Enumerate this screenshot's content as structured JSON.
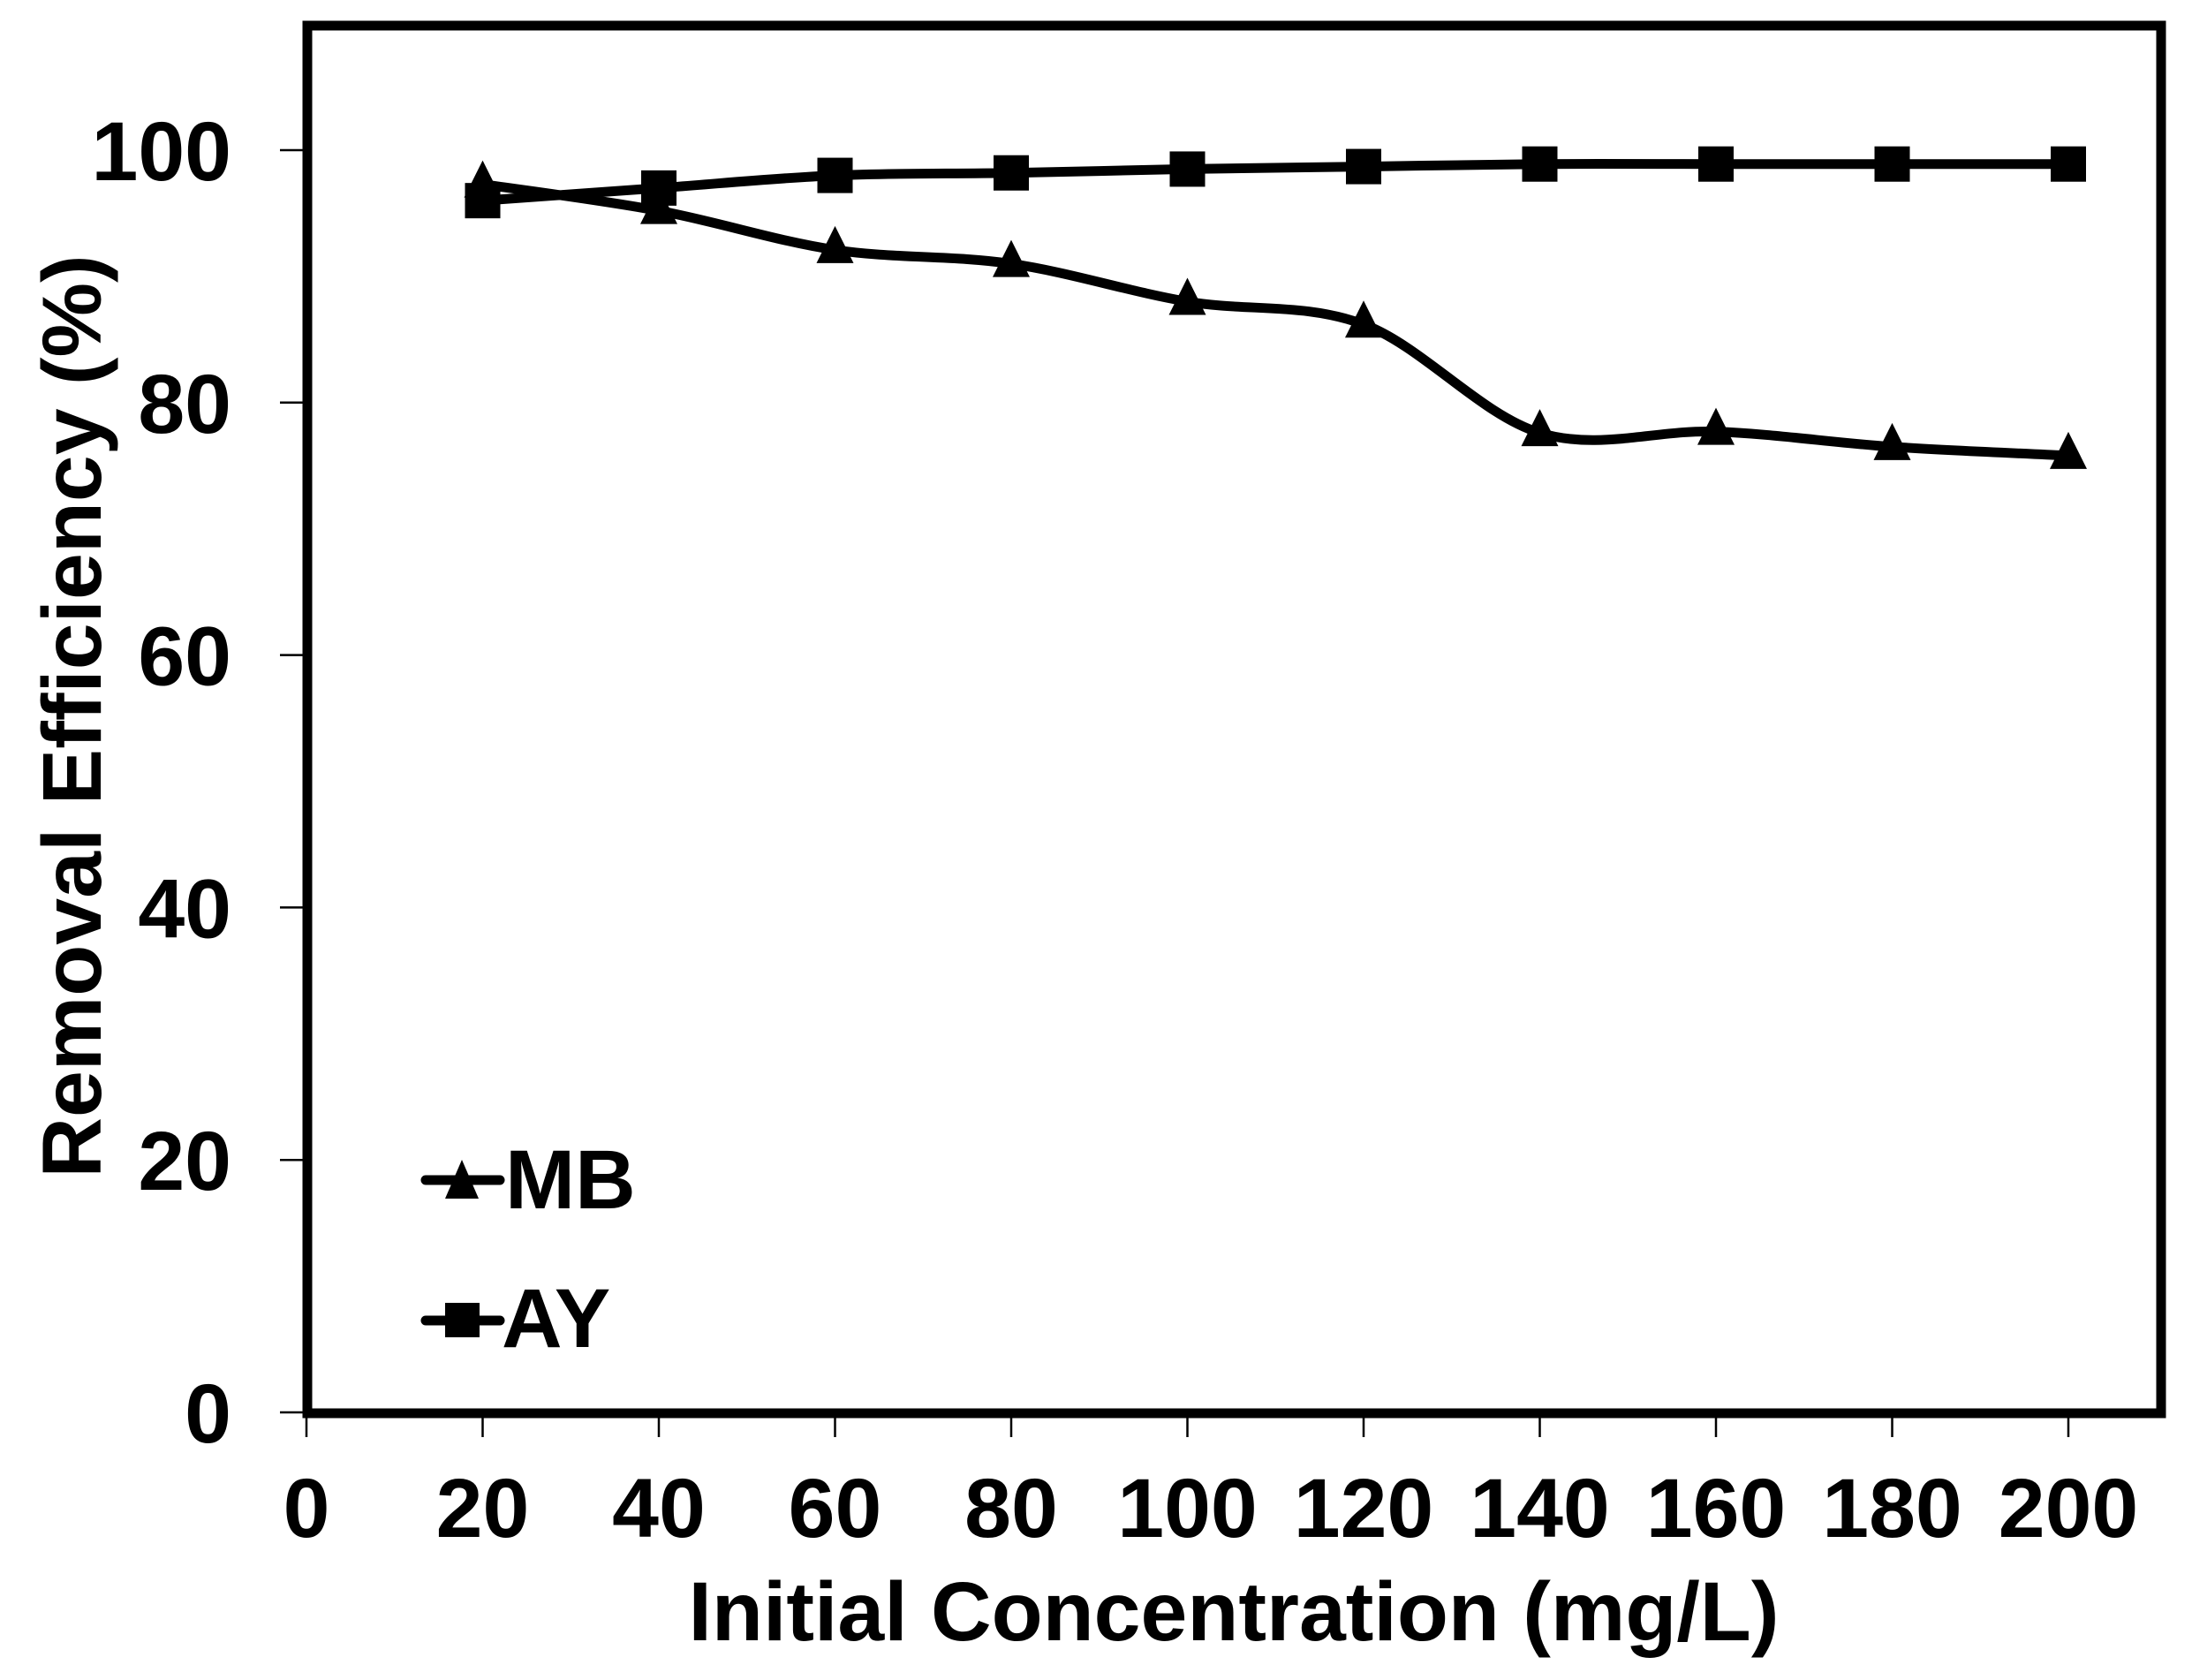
{
  "chart_data": {
    "type": "line",
    "title": "",
    "xlabel": "Initial Concentration (mg/L)",
    "ylabel": "Removal Efficiency (%)",
    "xlim": [
      0,
      210
    ],
    "ylim": [
      0,
      110
    ],
    "x_ticks": [
      0,
      20,
      40,
      60,
      80,
      100,
      120,
      140,
      160,
      180,
      200
    ],
    "y_ticks": [
      0,
      20,
      40,
      60,
      80,
      100
    ],
    "grid": false,
    "legend_position": "lower left (inside plot)",
    "x": [
      20,
      40,
      60,
      80,
      100,
      120,
      140,
      160,
      180,
      200
    ],
    "series": [
      {
        "name": "MB",
        "marker": "triangle",
        "color": "#000000",
        "smooth": true,
        "values": [
          97.3,
          95.2,
          92.1,
          91.0,
          88.0,
          86.2,
          77.6,
          77.7,
          76.5,
          75.8
        ]
      },
      {
        "name": "AY",
        "marker": "square",
        "color": "#000000",
        "smooth": true,
        "values": [
          96.0,
          97.0,
          98.0,
          98.2,
          98.5,
          98.7,
          98.9,
          98.9,
          98.9,
          98.9
        ]
      }
    ]
  },
  "axes": {
    "x_title": "Initial Concentration (mg/L)",
    "y_title": "Removal Efficiency (%)",
    "x_tick_labels": [
      "0",
      "20",
      "40",
      "60",
      "80",
      "100",
      "120",
      "140",
      "160",
      "180",
      "200"
    ],
    "y_tick_labels": [
      "0",
      "20",
      "40",
      "60",
      "80",
      "100"
    ]
  },
  "legend": {
    "items": [
      {
        "label": "MB",
        "marker": "triangle-icon"
      },
      {
        "label": "AY",
        "marker": "square-icon"
      }
    ]
  },
  "colors": {
    "line": "#000000",
    "background": "#ffffff",
    "frame": "#000000"
  }
}
